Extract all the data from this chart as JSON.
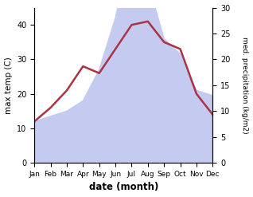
{
  "months": [
    "Jan",
    "Feb",
    "Mar",
    "Apr",
    "May",
    "Jun",
    "Jul",
    "Aug",
    "Sep",
    "Oct",
    "Nov",
    "Dec"
  ],
  "month_x": [
    0,
    1,
    2,
    3,
    4,
    5,
    6,
    7,
    8,
    9,
    10,
    11
  ],
  "temp": [
    12,
    16,
    21,
    28,
    26,
    33,
    40,
    41,
    35,
    33,
    20,
    14
  ],
  "precip": [
    8,
    9,
    10,
    12,
    18,
    28,
    43,
    35,
    24,
    21,
    14,
    13
  ],
  "temp_color": "#aa3344",
  "precip_fill_color": "#c5caf0",
  "left_ylabel": "max temp (C)",
  "right_ylabel": "med. precipitation (kg/m2)",
  "xlabel": "date (month)",
  "left_ylim": [
    0,
    45
  ],
  "right_ylim": [
    0,
    30
  ],
  "left_yticks": [
    0,
    10,
    20,
    30,
    40
  ],
  "right_yticks": [
    0,
    5,
    10,
    15,
    20,
    25,
    30
  ],
  "temp_linewidth": 1.8,
  "background_color": "#ffffff"
}
